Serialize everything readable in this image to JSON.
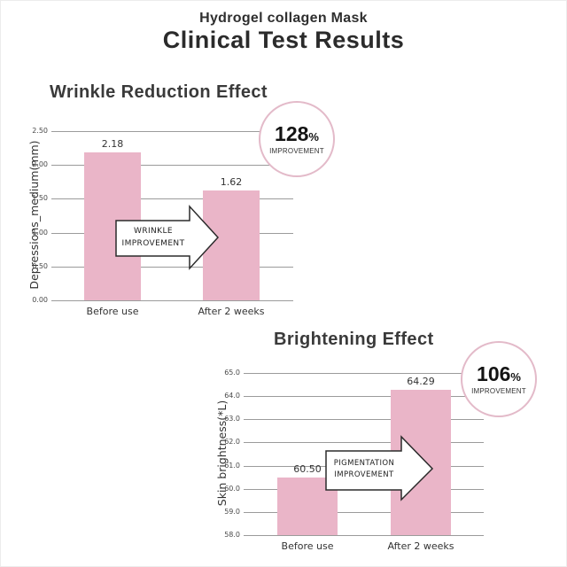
{
  "header": {
    "subtitle": "Hydrogel collagen Mask",
    "title": "Clinical Test Results"
  },
  "chart_data": [
    {
      "type": "bar",
      "title": "Wrinkle Reduction Effect",
      "categories": [
        "Before use",
        "After 2 weeks"
      ],
      "values": [
        2.18,
        1.62
      ],
      "value_labels": [
        "2.18",
        "1.62"
      ],
      "xlabel": "",
      "ylabel": "Depressions_medium(mm)",
      "ylim": [
        0,
        2.5
      ],
      "ytick_labels": [
        "2.50",
        "2.00",
        "1.50",
        "1.00",
        "0.50",
        "0.00"
      ],
      "grid": true,
      "legend": "none",
      "annotations": {
        "badge": {
          "number": "128",
          "suffix": "%",
          "caption": "IMPROVEMENT"
        },
        "arrow_label": [
          "WRINKLE",
          "IMPROVEMENT"
        ]
      }
    },
    {
      "type": "bar",
      "title": "Brightening Effect",
      "categories": [
        "Before use",
        "After 2 weeks"
      ],
      "values": [
        60.5,
        64.29
      ],
      "value_labels": [
        "60.50",
        "64.29"
      ],
      "xlabel": "",
      "ylabel": "Skin brightness(*L)",
      "ylim": [
        58.0,
        65.0
      ],
      "ytick_labels": [
        "65.0",
        "64.0",
        "63.0",
        "62.0",
        "61.0",
        "60.0",
        "59.0",
        "58.0"
      ],
      "grid": true,
      "legend": "none",
      "annotations": {
        "badge": {
          "number": "106",
          "suffix": "%",
          "caption": "IMPROVEMENT"
        },
        "arrow_label": [
          "PIGMENTATION",
          "IMPROVEMENT"
        ]
      }
    }
  ],
  "colors": {
    "bar_pink": "#eab5c8",
    "badge_border": "#e3bac9",
    "grid_line": "#9b9b9b",
    "arrow_outline": "#2b2b2b",
    "heading_text": "#2f2f2f"
  }
}
